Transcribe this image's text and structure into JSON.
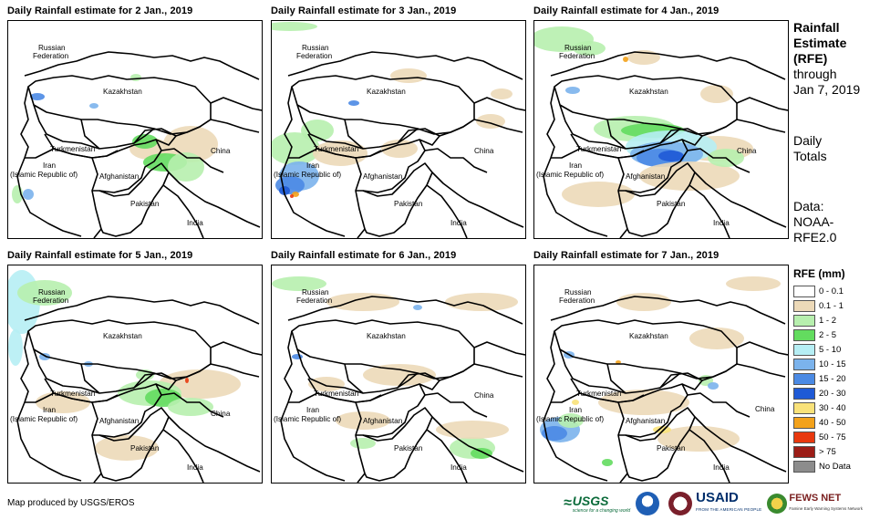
{
  "panels": [
    {
      "title": "Daily Rainfall estimate for 2 Jan., 2019"
    },
    {
      "title": "Daily Rainfall estimate for 3 Jan., 2019"
    },
    {
      "title": "Daily Rainfall estimate for 4 Jan., 2019"
    },
    {
      "title": "Daily Rainfall estimate for 5 Jan., 2019"
    },
    {
      "title": "Daily Rainfall estimate for 6 Jan., 2019"
    },
    {
      "title": "Daily Rainfall estimate for 7 Jan., 2019"
    }
  ],
  "map_labels": {
    "russia_1": "Russian",
    "russia_2": "Federation",
    "kazakhstan": "Kazakhstan",
    "turkmenistan": "Turkmenistan",
    "iran_1": "Iran",
    "iran_2": "(Islamic Republic of)",
    "afghanistan": "Afghanistan",
    "pakistan": "Pakistan",
    "china": "China",
    "india": "India"
  },
  "sidebar": {
    "rfe_line1": "Rainfall",
    "rfe_line2": "Estimate",
    "rfe_line3": "(RFE)",
    "through": "through",
    "through_date": "Jan 7, 2019",
    "daily": "Daily",
    "totals": "Totals",
    "data_label": "Data:",
    "data_src1": "NOAA-",
    "data_src2": "RFE2.0"
  },
  "legend": {
    "title": "RFE (mm)",
    "items": [
      {
        "label": "0 - 0.1",
        "color": "#ffffff"
      },
      {
        "label": "0.1 - 1",
        "color": "#ecd9b8"
      },
      {
        "label": "1 - 2",
        "color": "#b7efae"
      },
      {
        "label": "2 - 5",
        "color": "#63dc5f"
      },
      {
        "label": "5 - 10",
        "color": "#b6eef4"
      },
      {
        "label": "10 - 15",
        "color": "#7bb3ec"
      },
      {
        "label": "15 - 20",
        "color": "#4b8ae4"
      },
      {
        "label": "20 - 30",
        "color": "#1f5ad6"
      },
      {
        "label": "30 - 40",
        "color": "#f9e27a"
      },
      {
        "label": "40 - 50",
        "color": "#f3a21b"
      },
      {
        "label": "50 - 75",
        "color": "#e8380e"
      },
      {
        "label": "> 75",
        "color": "#9c1d17"
      },
      {
        "label": "No Data",
        "color": "#8c8c8c"
      }
    ]
  },
  "credit": "Map produced by USGS/EROS",
  "logos": {
    "usgs": "USGS",
    "usgs_tag": "science for a changing world",
    "usaid": "USAID",
    "usaid_sub": "FROM THE AMERICAN PEOPLE",
    "fews": "FEWS NET",
    "fews_sub": "Famine Early Warning Systems Network"
  }
}
